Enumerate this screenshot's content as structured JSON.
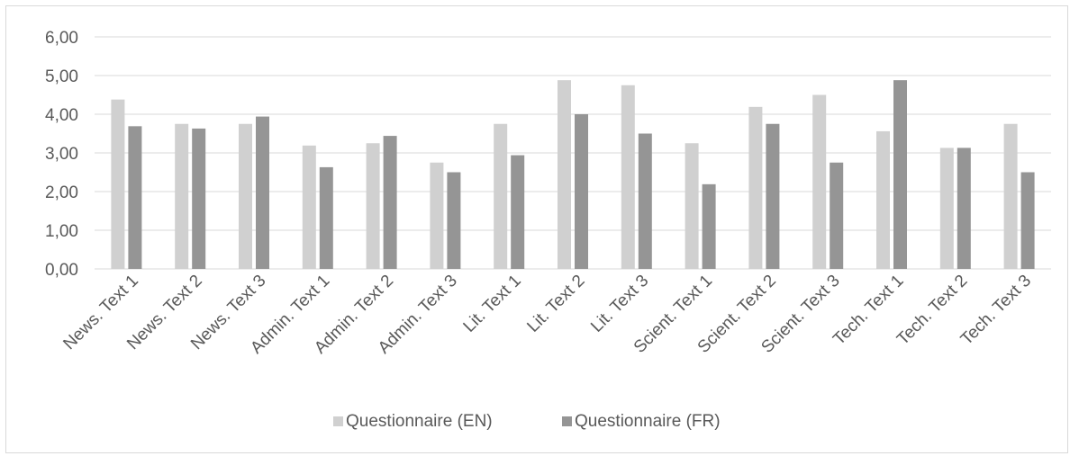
{
  "chart_data": {
    "type": "bar",
    "categories": [
      "News. Text 1",
      "News. Text 2",
      "News. Text 3",
      "Admin. Text 1",
      "Admin. Text 2",
      "Admin. Text 3",
      "Lit. Text 1",
      "Lit. Text 2",
      "Lit. Text 3",
      "Scient. Text 1",
      "Scient. Text 2",
      "Scient. Text 3",
      "Tech. Text 1",
      "Tech. Text 2",
      "Tech. Text 3"
    ],
    "series": [
      {
        "name": "Questionnaire (EN)",
        "color": "#d0d0d0",
        "values": [
          4.38,
          3.75,
          3.75,
          3.19,
          3.25,
          2.75,
          3.75,
          4.88,
          4.75,
          3.25,
          4.19,
          4.5,
          3.56,
          3.13,
          3.75
        ]
      },
      {
        "name": "Questionnaire (FR)",
        "color": "#959595",
        "values": [
          3.69,
          3.63,
          3.94,
          2.63,
          3.44,
          2.5,
          2.94,
          4.0,
          3.5,
          2.19,
          3.75,
          2.75,
          4.88,
          3.13,
          2.5
        ]
      }
    ],
    "y_ticks": [
      "0,00",
      "1,00",
      "2,00",
      "3,00",
      "4,00",
      "5,00",
      "6,00"
    ],
    "ylim": [
      0,
      6
    ],
    "grid": true,
    "legend_position": "bottom",
    "title": "",
    "xlabel": "",
    "ylabel": ""
  }
}
